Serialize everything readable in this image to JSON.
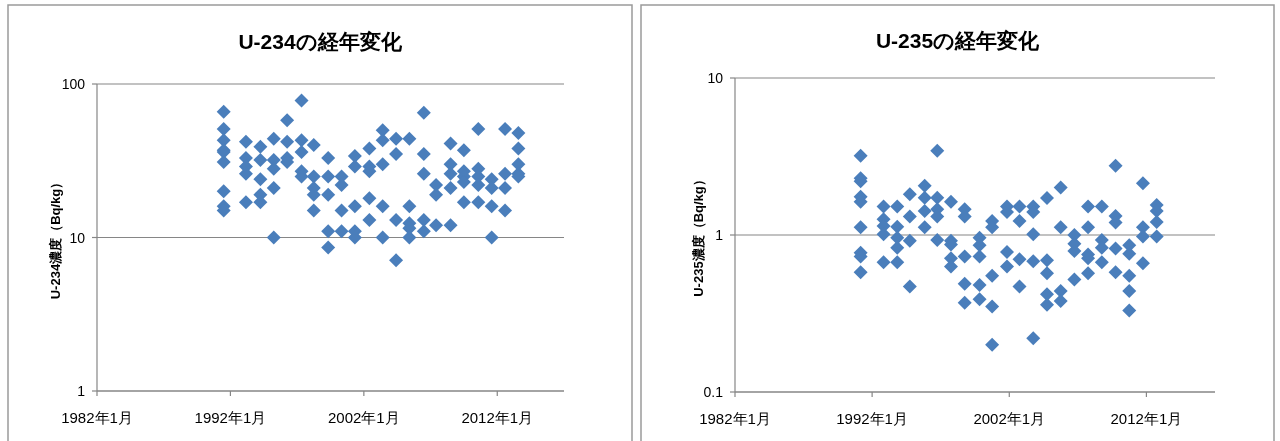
{
  "chart_data": [
    {
      "type": "scatter",
      "title": "U-234の経年変化",
      "ylabel": "U-234濃度（Bq/kg）",
      "log": "y",
      "grid": "y",
      "marker": "diamond",
      "xlim": [
        "1982-01",
        "2017-01"
      ],
      "xticks": [
        {
          "value": "1982-01",
          "label": "1982年1月"
        },
        {
          "value": "1992-01",
          "label": "1992年1月"
        },
        {
          "value": "2002-01",
          "label": "2002年1月"
        },
        {
          "value": "2012-01",
          "label": "2012年1月"
        }
      ],
      "ylim": [
        1,
        100
      ],
      "yticks": [
        1,
        10,
        100
      ],
      "series": [
        {
          "color": "#4a7ebb",
          "x": [
            "1991-07",
            "1991-07",
            "1991-07",
            "1991-07",
            "1991-07",
            "1991-07",
            "1991-07",
            "1991-07",
            "1991-07",
            "1993-03",
            "1993-03",
            "1993-03",
            "1993-03",
            "1993-03",
            "1994-04",
            "1994-04",
            "1994-04",
            "1994-04",
            "1994-04",
            "1995-04",
            "1995-04",
            "1995-04",
            "1995-04",
            "1995-04",
            "1996-04",
            "1996-04",
            "1996-04",
            "1996-04",
            "1997-05",
            "1997-05",
            "1997-05",
            "1997-05",
            "1997-05",
            "1998-04",
            "1998-04",
            "1998-04",
            "1998-04",
            "1998-04",
            "1999-05",
            "1999-05",
            "1999-05",
            "1999-05",
            "1999-05",
            "2000-05",
            "2000-05",
            "2000-05",
            "2000-05",
            "2001-05",
            "2001-05",
            "2001-05",
            "2001-05",
            "2001-05",
            "2002-06",
            "2002-06",
            "2002-06",
            "2002-06",
            "2002-06",
            "2003-06",
            "2003-06",
            "2003-06",
            "2003-06",
            "2003-06",
            "2004-06",
            "2004-06",
            "2004-06",
            "2004-06",
            "2005-06",
            "2005-06",
            "2005-06",
            "2005-06",
            "2005-06",
            "2006-07",
            "2006-07",
            "2006-07",
            "2006-07",
            "2006-07",
            "2007-06",
            "2007-06",
            "2007-06",
            "2008-07",
            "2008-07",
            "2008-07",
            "2008-07",
            "2008-07",
            "2009-07",
            "2009-07",
            "2009-07",
            "2009-07",
            "2009-07",
            "2010-08",
            "2010-08",
            "2010-08",
            "2010-08",
            "2010-08",
            "2011-08",
            "2011-08",
            "2011-08",
            "2011-08",
            "2012-08",
            "2012-08",
            "2012-08",
            "2012-08",
            "2013-08",
            "2013-08",
            "2013-08",
            "2013-08",
            "2013-08"
          ],
          "values": [
            66,
            51,
            43,
            37,
            36,
            31,
            20,
            16,
            15,
            42,
            33,
            29,
            26,
            17,
            39,
            32,
            24,
            19,
            17,
            44,
            32,
            28,
            21,
            10,
            58,
            42,
            33,
            31,
            78,
            43,
            36,
            27,
            25,
            40,
            25,
            21,
            19,
            15,
            33,
            25,
            19,
            11,
            8.6,
            25,
            22,
            15,
            11,
            34,
            29,
            16,
            11,
            10,
            38,
            29,
            27,
            18,
            13,
            50,
            43,
            30,
            16,
            10,
            44,
            35,
            13,
            7.1,
            44,
            16,
            12.4,
            11.5,
            10,
            65,
            35,
            26,
            13,
            11,
            22,
            19,
            12,
            41,
            30,
            26,
            21,
            12,
            37,
            27,
            25,
            23,
            17,
            51,
            28,
            25,
            22,
            17,
            24,
            21,
            16,
            10,
            51,
            26,
            21,
            15,
            48,
            38,
            30,
            26,
            25
          ]
        }
      ]
    },
    {
      "type": "scatter",
      "title": "U-235の経年変化",
      "ylabel": "U-235濃度（Bq/kg）",
      "log": "y",
      "grid": "y",
      "marker": "diamond",
      "xlim": [
        "1982-01",
        "2017-01"
      ],
      "xticks": [
        {
          "value": "1982-01",
          "label": "1982年1月"
        },
        {
          "value": "1992-01",
          "label": "1992年1月"
        },
        {
          "value": "2002-01",
          "label": "2002年1月"
        },
        {
          "value": "2012-01",
          "label": "2012年1月"
        }
      ],
      "ylim": [
        0.1,
        10
      ],
      "yticks": [
        0.1,
        1,
        10
      ],
      "series": [
        {
          "color": "#4a7ebb",
          "x": [
            "1991-03",
            "1991-03",
            "1991-03",
            "1991-03",
            "1991-03",
            "1991-03",
            "1991-03",
            "1991-03",
            "1991-03",
            "1992-11",
            "1992-11",
            "1992-11",
            "1992-11",
            "1992-11",
            "1993-11",
            "1993-11",
            "1993-11",
            "1993-11",
            "1993-11",
            "1994-10",
            "1994-10",
            "1994-10",
            "1994-10",
            "1995-11",
            "1995-11",
            "1995-11",
            "1995-11",
            "1996-10",
            "1996-10",
            "1996-10",
            "1996-10",
            "1996-10",
            "1997-10",
            "1997-10",
            "1997-10",
            "1997-10",
            "1997-10",
            "1998-10",
            "1998-10",
            "1998-10",
            "1998-10",
            "1998-10",
            "1999-11",
            "1999-11",
            "1999-11",
            "1999-11",
            "1999-11",
            "2000-10",
            "2000-10",
            "2000-10",
            "2000-10",
            "2000-10",
            "2001-11",
            "2001-11",
            "2001-11",
            "2001-11",
            "2002-10",
            "2002-10",
            "2002-10",
            "2002-10",
            "2003-10",
            "2003-10",
            "2003-10",
            "2003-10",
            "2003-10",
            "2004-10",
            "2004-10",
            "2004-10",
            "2004-10",
            "2004-10",
            "2005-10",
            "2005-10",
            "2005-10",
            "2005-10",
            "2006-10",
            "2006-10",
            "2006-10",
            "2006-10",
            "2007-10",
            "2007-10",
            "2007-10",
            "2007-10",
            "2007-10",
            "2008-10",
            "2008-10",
            "2008-10",
            "2008-10",
            "2009-10",
            "2009-10",
            "2009-10",
            "2009-10",
            "2009-10",
            "2010-10",
            "2010-10",
            "2010-10",
            "2010-10",
            "2010-10",
            "2011-10",
            "2011-10",
            "2011-10",
            "2011-10",
            "2012-10",
            "2012-10",
            "2012-10",
            "2012-10"
          ],
          "values": [
            3.2,
            2.3,
            2.2,
            1.75,
            1.63,
            1.12,
            0.77,
            0.73,
            0.58,
            1.52,
            1.26,
            1.14,
            1.01,
            0.67,
            1.52,
            1.13,
            0.96,
            0.83,
            0.67,
            1.82,
            1.31,
            0.92,
            0.47,
            2.06,
            1.73,
            1.42,
            1.12,
            3.44,
            1.73,
            1.46,
            1.31,
            0.93,
            1.63,
            0.92,
            0.87,
            0.71,
            0.63,
            1.46,
            1.31,
            0.73,
            0.49,
            0.37,
            0.96,
            0.86,
            0.73,
            0.48,
            0.39,
            1.23,
            1.12,
            0.55,
            0.35,
            0.2,
            1.52,
            1.4,
            0.78,
            0.63,
            1.52,
            1.23,
            0.7,
            0.47,
            1.52,
            1.4,
            1.01,
            0.68,
            0.22,
            1.72,
            0.69,
            0.57,
            0.42,
            0.36,
            2.01,
            1.12,
            0.44,
            0.38,
            1.0,
            0.88,
            0.79,
            0.52,
            1.52,
            1.12,
            0.75,
            0.71,
            0.57,
            1.52,
            0.93,
            0.83,
            0.67,
            2.76,
            1.32,
            1.2,
            0.82,
            0.58,
            0.86,
            0.76,
            0.55,
            0.44,
            0.33,
            2.14,
            1.12,
            0.98,
            0.66,
            1.55,
            1.42,
            1.21,
            0.98
          ]
        }
      ]
    }
  ]
}
